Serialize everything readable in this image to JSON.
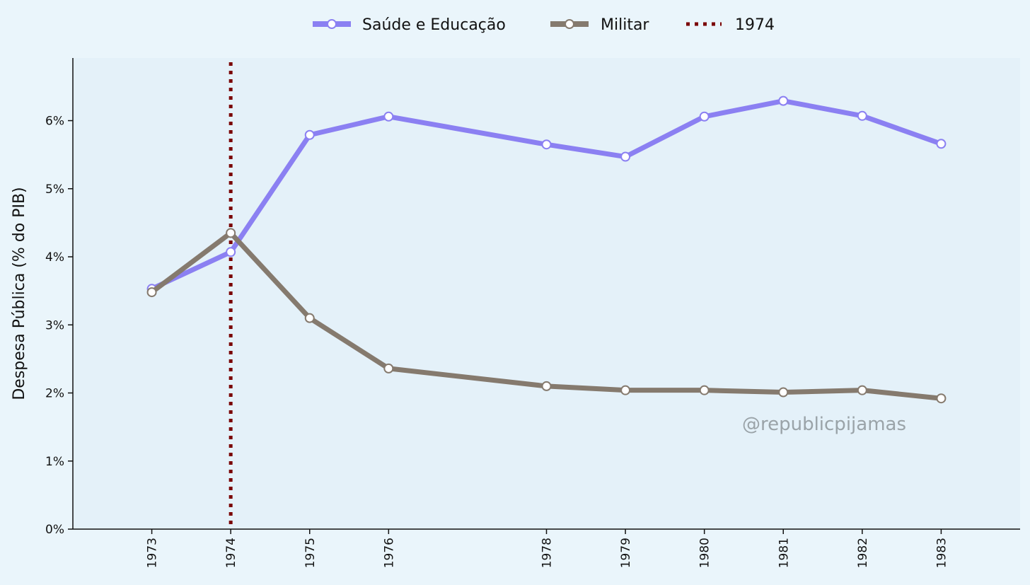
{
  "chart_data": {
    "type": "line",
    "title": "",
    "xlabel": "",
    "ylabel": "Despesa Pública (% do PIB)",
    "x": [
      1973,
      1974,
      1975,
      1976,
      1978,
      1979,
      1980,
      1981,
      1982,
      1983
    ],
    "x_tick_labels": [
      "1973",
      "1974",
      "1975",
      "1976",
      "1978",
      "1979",
      "1980",
      "1981",
      "1982",
      "1983"
    ],
    "xlim": [
      1972,
      1984
    ],
    "ylim": [
      0,
      6.92
    ],
    "y_ticks": [
      0,
      1,
      2,
      3,
      4,
      5,
      6
    ],
    "y_tick_labels": [
      "0%",
      "1%",
      "2%",
      "3%",
      "4%",
      "5%",
      "6%"
    ],
    "series": [
      {
        "name": "Saúde e Educação",
        "color": "#8b80f2",
        "values": [
          3.53,
          4.07,
          5.79,
          6.06,
          5.65,
          5.47,
          6.06,
          6.29,
          6.07,
          5.66
        ]
      },
      {
        "name": "Militar",
        "color": "#857a6e",
        "values": [
          3.48,
          4.35,
          3.1,
          2.36,
          2.1,
          2.04,
          2.04,
          2.01,
          2.04,
          1.92
        ]
      }
    ],
    "reference_line": {
      "name": "1974",
      "x": 1974,
      "color": "#7a0000",
      "style": "dotted"
    },
    "legend": {
      "position": "top-center",
      "entries": [
        "Saúde e Educação",
        "Militar",
        "1974"
      ]
    },
    "grid": false,
    "watermark": "@republicpijamas",
    "plot_background": "#e4f1f9",
    "page_background": "#eaf5fb"
  }
}
